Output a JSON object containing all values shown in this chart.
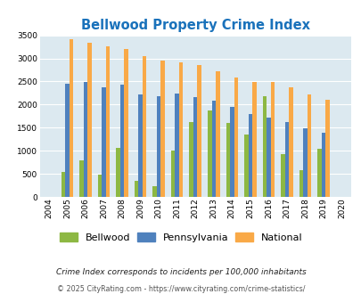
{
  "title": "Bellwood Property Crime Index",
  "years": [
    2004,
    2005,
    2006,
    2007,
    2008,
    2009,
    2010,
    2011,
    2012,
    2013,
    2014,
    2015,
    2016,
    2017,
    2018,
    2019,
    2020
  ],
  "bellwood": [
    0,
    540,
    800,
    490,
    1060,
    340,
    230,
    1010,
    1630,
    1870,
    1610,
    1350,
    2190,
    920,
    590,
    1040,
    0
  ],
  "pennsylvania": [
    0,
    2460,
    2480,
    2380,
    2440,
    2210,
    2190,
    2240,
    2160,
    2080,
    1950,
    1800,
    1720,
    1630,
    1490,
    1390,
    0
  ],
  "national": [
    0,
    3420,
    3340,
    3260,
    3200,
    3040,
    2950,
    2920,
    2850,
    2730,
    2590,
    2490,
    2480,
    2380,
    2210,
    2110,
    0
  ],
  "bellwood_color": "#8db843",
  "pennsylvania_color": "#4f81bd",
  "national_color": "#f9a947",
  "bg_color": "#dce9f0",
  "grid_color": "#ffffff",
  "ylim": [
    0,
    3500
  ],
  "yticks": [
    0,
    500,
    1000,
    1500,
    2000,
    2500,
    3000,
    3500
  ],
  "title_color": "#1a72bb",
  "title_fontsize": 10.5,
  "legend_labels": [
    "Bellwood",
    "Pennsylvania",
    "National"
  ],
  "footnote1": "Crime Index corresponds to incidents per 100,000 inhabitants",
  "footnote2": "© 2025 CityRating.com - https://www.cityrating.com/crime-statistics/"
}
